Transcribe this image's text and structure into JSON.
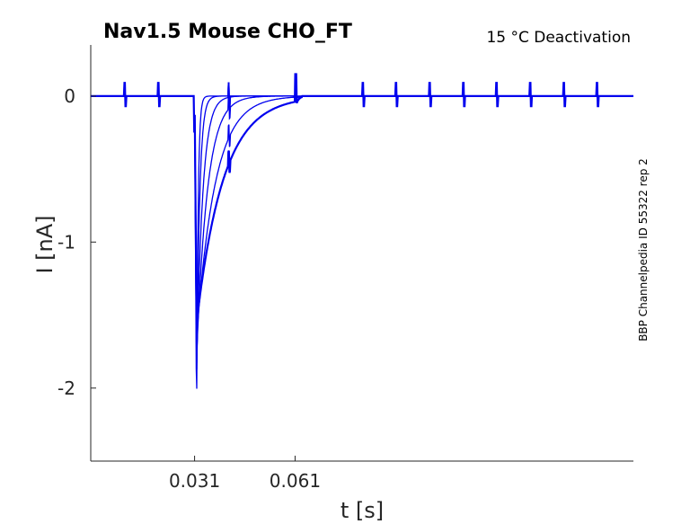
{
  "chart_data": {
    "type": "line",
    "title": "Nav1.5  Mouse  CHO_FT",
    "subtitle": "15 °C  Deactivation",
    "xlabel": "t [s]",
    "ylabel": "I [nA]",
    "side_label": "BBP Channelpedia ID 55322 rep 2",
    "x_ticks": [
      "0.031",
      "0.061"
    ],
    "x_tick_values": [
      0.031,
      0.061
    ],
    "y_ticks": [
      "0",
      "-1",
      "-2"
    ],
    "y_tick_values": [
      0,
      -1,
      -2
    ],
    "xlim": [
      0.0,
      0.162
    ],
    "ylim": [
      -2.5,
      0.35
    ],
    "series_color": "#0000ee",
    "grid": false,
    "step_onset_s": 0.031,
    "step_end_s": 0.061,
    "tail_peaks_nA": [
      -2.24,
      -1.98,
      -1.88,
      -1.78,
      -1.65,
      -1.55
    ],
    "tail_taus_ms": [
      0.45,
      0.9,
      1.8,
      3.2,
      5.5,
      8.0
    ],
    "step_release_current_nA": [
      0,
      -0.005,
      -0.02,
      -0.03,
      -0.07,
      -0.09
    ],
    "baseline_nA": 0,
    "artifact_times_s": [
      0.01,
      0.02,
      0.041,
      0.081,
      0.091,
      0.101,
      0.111,
      0.121,
      0.131,
      0.141,
      0.151
    ]
  }
}
